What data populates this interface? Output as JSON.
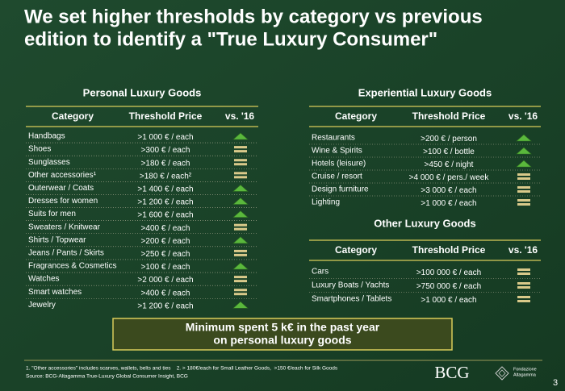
{
  "title": [
    "We set higher thresholds by category vs previous",
    "edition to identify a \"True Luxury Consumer\""
  ],
  "tables": [
    {
      "heading": "Personal Luxury Goods",
      "columns": [
        "Category",
        "Threshold Price",
        "vs. '16"
      ],
      "rows": [
        {
          "category": "Handbags",
          "threshold": ">1 000 € / each",
          "trend": "up"
        },
        {
          "category": "Shoes",
          "threshold": ">300 € / each",
          "trend": "same"
        },
        {
          "category": "Sunglasses",
          "threshold": ">180 € / each",
          "trend": "same"
        },
        {
          "category": "Other accessories¹",
          "threshold": ">180 € / each²",
          "trend": "same"
        },
        {
          "category": "Outerwear / Coats",
          "threshold": ">1 400 € / each",
          "trend": "up"
        },
        {
          "category": "Dresses for women",
          "threshold": ">1 200 € / each",
          "trend": "up"
        },
        {
          "category": "Suits for men",
          "threshold": ">1 600 € / each",
          "trend": "up"
        },
        {
          "category": "Sweaters / Knitwear",
          "threshold": ">400 € / each",
          "trend": "same"
        },
        {
          "category": "Shirts / Topwear",
          "threshold": ">200 € / each",
          "trend": "up"
        },
        {
          "category": "Jeans / Pants / Skirts",
          "threshold": ">250 € / each",
          "trend": "same"
        },
        {
          "category": "Fragrances & Cosmetics",
          "threshold": ">100 € / each",
          "trend": "up"
        },
        {
          "category": "Watches",
          "threshold": ">2 000 € / each",
          "trend": "same"
        },
        {
          "category": "Smart watches",
          "threshold": ">400 € / each",
          "trend": "same"
        },
        {
          "category": "Jewelry",
          "threshold": ">1 200 € / each",
          "trend": "up"
        }
      ]
    },
    {
      "heading": "Experiential Luxury Goods",
      "columns": [
        "Category",
        "Threshold Price",
        "vs. '16"
      ],
      "rows": [
        {
          "category": "Restaurants",
          "threshold": ">200 € / person",
          "trend": "up"
        },
        {
          "category": "Wine & Spirits",
          "threshold": ">100 € / bottle",
          "trend": "up"
        },
        {
          "category": "Hotels (leisure)",
          "threshold": ">450 € / night",
          "trend": "up"
        },
        {
          "category": "Cruise / resort",
          "threshold": ">4 000 € / pers./ week",
          "trend": "same"
        },
        {
          "category": "Design furniture",
          "threshold": ">3 000 € / each",
          "trend": "same"
        },
        {
          "category": "Lighting",
          "threshold": ">1 000 € / each",
          "trend": "same"
        }
      ]
    },
    {
      "heading": "Other Luxury Goods",
      "columns": [
        "Category",
        "Threshold Price",
        "vs. '16"
      ],
      "rows": [
        {
          "category": "Cars",
          "threshold": ">100 000 € / each",
          "trend": "same"
        },
        {
          "category": "Luxury Boats / Yachts",
          "threshold": ">750 000 € / each",
          "trend": "same"
        },
        {
          "category": "Smartphones / Tablets",
          "threshold": ">1 000 € / each",
          "trend": "same"
        }
      ]
    }
  ],
  "callout": [
    "Minimum spent 5 k€ in the past year",
    "on personal luxury goods"
  ],
  "footnotes": [
    "1. \"Other accessories\" includes scarves, wallets, belts and ties    2. > 180€/each for Small Leather Goods,  >150 €/each for Silk Goods",
    "Source: BCG-Altagamma True-Luxury Global Consumer Insight, BCG"
  ],
  "logos": [
    "BCG",
    "Fondazione",
    "Altagamma"
  ],
  "page": "3"
}
